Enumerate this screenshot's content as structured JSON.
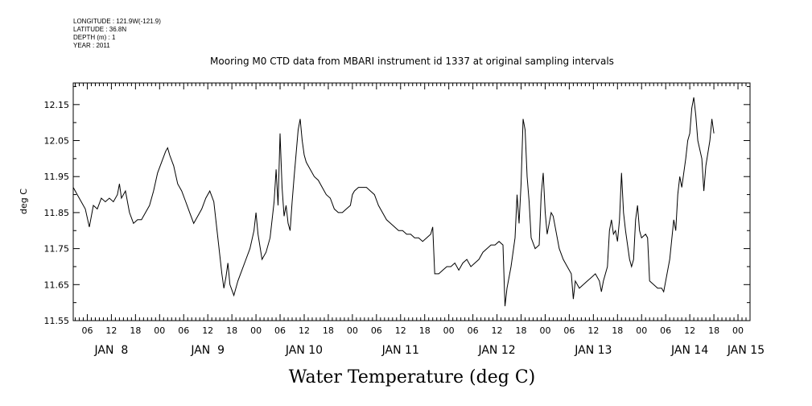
{
  "meta": {
    "longitude": "LONGITUDE : 121.9W(-121.9)",
    "latitude": "LATITUDE : 36.8N",
    "depth": "DEPTH (m) : 1",
    "year": "YEAR : 2011"
  },
  "chart_data": {
    "type": "line",
    "title": "Mooring M0 CTD data from MBARI instrument id 1337 at original sampling intervals",
    "ylabel": "deg C",
    "xlabel": "Water Temperature (deg C)",
    "ylim": [
      11.55,
      12.21
    ],
    "xlim_hours": [
      2.5,
      171.0
    ],
    "y_ticks": [
      "11.55",
      "11.65",
      "11.75",
      "11.85",
      "11.95",
      "12.05",
      "12.15"
    ],
    "x_hour_ticks": [
      {
        "hour": 6,
        "label": "06"
      },
      {
        "hour": 12,
        "label": "12"
      },
      {
        "hour": 18,
        "label": "18"
      },
      {
        "hour": 24,
        "label": "00"
      },
      {
        "hour": 30,
        "label": "06"
      },
      {
        "hour": 36,
        "label": "12"
      },
      {
        "hour": 42,
        "label": "18"
      },
      {
        "hour": 48,
        "label": "00"
      },
      {
        "hour": 54,
        "label": "06"
      },
      {
        "hour": 60,
        "label": "12"
      },
      {
        "hour": 66,
        "label": "18"
      },
      {
        "hour": 72,
        "label": "00"
      },
      {
        "hour": 78,
        "label": "06"
      },
      {
        "hour": 84,
        "label": "12"
      },
      {
        "hour": 90,
        "label": "18"
      },
      {
        "hour": 96,
        "label": "00"
      },
      {
        "hour": 102,
        "label": "06"
      },
      {
        "hour": 108,
        "label": "12"
      },
      {
        "hour": 114,
        "label": "18"
      },
      {
        "hour": 120,
        "label": "00"
      },
      {
        "hour": 126,
        "label": "06"
      },
      {
        "hour": 132,
        "label": "12"
      },
      {
        "hour": 138,
        "label": "18"
      },
      {
        "hour": 144,
        "label": "00"
      },
      {
        "hour": 150,
        "label": "06"
      },
      {
        "hour": 156,
        "label": "12"
      },
      {
        "hour": 162,
        "label": "18"
      },
      {
        "hour": 168,
        "label": "00"
      }
    ],
    "day_labels": [
      {
        "hour": 12,
        "label": "JAN  8"
      },
      {
        "hour": 36,
        "label": "JAN  9"
      },
      {
        "hour": 60,
        "label": "JAN 10"
      },
      {
        "hour": 84,
        "label": "JAN 11"
      },
      {
        "hour": 108,
        "label": "JAN 12"
      },
      {
        "hour": 132,
        "label": "JAN 13"
      },
      {
        "hour": 156,
        "label": "JAN 14"
      },
      {
        "hour": 170,
        "label": "JAN 15"
      }
    ],
    "series": [
      {
        "color": "#000000",
        "points": [
          [
            2.5,
            11.92
          ],
          [
            3.5,
            11.9
          ],
          [
            4.5,
            11.88
          ],
          [
            5.5,
            11.86
          ],
          [
            6.5,
            11.81
          ],
          [
            7.5,
            11.87
          ],
          [
            8.5,
            11.86
          ],
          [
            9.5,
            11.89
          ],
          [
            10.5,
            11.88
          ],
          [
            11.5,
            11.89
          ],
          [
            12.5,
            11.88
          ],
          [
            13.5,
            11.9
          ],
          [
            14,
            11.93
          ],
          [
            14.5,
            11.89
          ],
          [
            15.5,
            11.91
          ],
          [
            16.5,
            11.85
          ],
          [
            17.5,
            11.82
          ],
          [
            18.5,
            11.83
          ],
          [
            19.5,
            11.83
          ],
          [
            20.5,
            11.85
          ],
          [
            21.5,
            11.87
          ],
          [
            22.5,
            11.91
          ],
          [
            23.5,
            11.96
          ],
          [
            24.5,
            11.99
          ],
          [
            25.5,
            12.02
          ],
          [
            26,
            12.03
          ],
          [
            26.5,
            12.01
          ],
          [
            27.5,
            11.98
          ],
          [
            28.5,
            11.93
          ],
          [
            29.5,
            11.91
          ],
          [
            30.5,
            11.88
          ],
          [
            31.5,
            11.85
          ],
          [
            32.5,
            11.82
          ],
          [
            33.5,
            11.84
          ],
          [
            34.5,
            11.86
          ],
          [
            35.5,
            11.89
          ],
          [
            36.5,
            11.91
          ],
          [
            37.5,
            11.88
          ],
          [
            38.5,
            11.78
          ],
          [
            39.5,
            11.68
          ],
          [
            40,
            11.64
          ],
          [
            40.5,
            11.67
          ],
          [
            41,
            11.71
          ],
          [
            41.5,
            11.65
          ],
          [
            42.5,
            11.62
          ],
          [
            43.5,
            11.66
          ],
          [
            44.5,
            11.69
          ],
          [
            45.5,
            11.72
          ],
          [
            46.5,
            11.75
          ],
          [
            47.5,
            11.8
          ],
          [
            48,
            11.85
          ],
          [
            48.5,
            11.79
          ],
          [
            49.5,
            11.72
          ],
          [
            50.5,
            11.74
          ],
          [
            51.5,
            11.78
          ],
          [
            52.5,
            11.88
          ],
          [
            53,
            11.97
          ],
          [
            53.5,
            11.87
          ],
          [
            54,
            12.07
          ],
          [
            54.5,
            11.92
          ],
          [
            55,
            11.84
          ],
          [
            55.5,
            11.87
          ],
          [
            56,
            11.82
          ],
          [
            56.5,
            11.8
          ],
          [
            57,
            11.88
          ],
          [
            57.5,
            11.95
          ],
          [
            58.5,
            12.08
          ],
          [
            59,
            12.11
          ],
          [
            59.5,
            12.05
          ],
          [
            60,
            12.01
          ],
          [
            60.5,
            11.99
          ],
          [
            61.5,
            11.97
          ],
          [
            62.5,
            11.95
          ],
          [
            63.5,
            11.94
          ],
          [
            64.5,
            11.92
          ],
          [
            65.5,
            11.9
          ],
          [
            66.5,
            11.89
          ],
          [
            67.5,
            11.86
          ],
          [
            68.5,
            11.85
          ],
          [
            69.5,
            11.85
          ],
          [
            70.5,
            11.86
          ],
          [
            71.5,
            11.87
          ],
          [
            72,
            11.9
          ],
          [
            72.5,
            11.91
          ],
          [
            73.5,
            11.92
          ],
          [
            74.5,
            11.92
          ],
          [
            75.5,
            11.92
          ],
          [
            76.5,
            11.91
          ],
          [
            77.5,
            11.9
          ],
          [
            78.5,
            11.87
          ],
          [
            79.5,
            11.85
          ],
          [
            80.5,
            11.83
          ],
          [
            81.5,
            11.82
          ],
          [
            82.5,
            11.81
          ],
          [
            83.5,
            11.8
          ],
          [
            84.5,
            11.8
          ],
          [
            85.5,
            11.79
          ],
          [
            86.5,
            11.79
          ],
          [
            87.5,
            11.78
          ],
          [
            88.5,
            11.78
          ],
          [
            89.5,
            11.77
          ],
          [
            90.5,
            11.78
          ],
          [
            91.5,
            11.79
          ],
          [
            92,
            11.81
          ],
          [
            92.5,
            11.68
          ],
          [
            93.5,
            11.68
          ],
          [
            94.5,
            11.69
          ],
          [
            95.5,
            11.7
          ],
          [
            96.5,
            11.7
          ],
          [
            97.5,
            11.71
          ],
          [
            98.5,
            11.69
          ],
          [
            99.5,
            11.71
          ],
          [
            100.5,
            11.72
          ],
          [
            101.5,
            11.7
          ],
          [
            102.5,
            11.71
          ],
          [
            103.5,
            11.72
          ],
          [
            104.5,
            11.74
          ],
          [
            105.5,
            11.75
          ],
          [
            106.5,
            11.76
          ],
          [
            107.5,
            11.76
          ],
          [
            108.5,
            11.77
          ],
          [
            109.5,
            11.76
          ],
          [
            110,
            11.59
          ],
          [
            110.5,
            11.64
          ],
          [
            111.5,
            11.7
          ],
          [
            112.5,
            11.78
          ],
          [
            113,
            11.9
          ],
          [
            113.5,
            11.82
          ],
          [
            114,
            11.93
          ],
          [
            114.5,
            12.11
          ],
          [
            115,
            12.08
          ],
          [
            115.5,
            11.95
          ],
          [
            116,
            11.88
          ],
          [
            116.5,
            11.78
          ],
          [
            117.5,
            11.75
          ],
          [
            118.5,
            11.76
          ],
          [
            119,
            11.9
          ],
          [
            119.5,
            11.96
          ],
          [
            120,
            11.85
          ],
          [
            120.5,
            11.79
          ],
          [
            121,
            11.82
          ],
          [
            121.5,
            11.85
          ],
          [
            122,
            11.84
          ],
          [
            122.5,
            11.81
          ],
          [
            123.5,
            11.75
          ],
          [
            124.5,
            11.72
          ],
          [
            125.5,
            11.7
          ],
          [
            126.5,
            11.68
          ],
          [
            127,
            11.61
          ],
          [
            127.5,
            11.66
          ],
          [
            128.5,
            11.64
          ],
          [
            129.5,
            11.65
          ],
          [
            130.5,
            11.66
          ],
          [
            131.5,
            11.67
          ],
          [
            132.5,
            11.68
          ],
          [
            133.5,
            11.66
          ],
          [
            134,
            11.63
          ],
          [
            134.5,
            11.66
          ],
          [
            135.5,
            11.7
          ],
          [
            136,
            11.8
          ],
          [
            136.5,
            11.83
          ],
          [
            137,
            11.79
          ],
          [
            137.5,
            11.8
          ],
          [
            138,
            11.77
          ],
          [
            138.5,
            11.83
          ],
          [
            139,
            11.96
          ],
          [
            139.5,
            11.85
          ],
          [
            140,
            11.8
          ],
          [
            141,
            11.72
          ],
          [
            141.5,
            11.7
          ],
          [
            142,
            11.72
          ],
          [
            142.5,
            11.83
          ],
          [
            143,
            11.87
          ],
          [
            143.5,
            11.8
          ],
          [
            144,
            11.78
          ],
          [
            145,
            11.79
          ],
          [
            145.5,
            11.78
          ],
          [
            146,
            11.66
          ],
          [
            147,
            11.65
          ],
          [
            148,
            11.64
          ],
          [
            149,
            11.64
          ],
          [
            149.5,
            11.63
          ],
          [
            150,
            11.66
          ],
          [
            151,
            11.72
          ],
          [
            152,
            11.83
          ],
          [
            152.5,
            11.8
          ],
          [
            153,
            11.9
          ],
          [
            153.5,
            11.95
          ],
          [
            154,
            11.92
          ],
          [
            155,
            12.0
          ],
          [
            155.5,
            12.05
          ],
          [
            156,
            12.07
          ],
          [
            156.5,
            12.14
          ],
          [
            157,
            12.17
          ],
          [
            157.5,
            12.12
          ],
          [
            158,
            12.05
          ],
          [
            159,
            12.0
          ],
          [
            159.5,
            11.91
          ],
          [
            160,
            11.98
          ],
          [
            161,
            12.05
          ],
          [
            161.5,
            12.11
          ],
          [
            162,
            12.07
          ]
        ]
      }
    ]
  }
}
